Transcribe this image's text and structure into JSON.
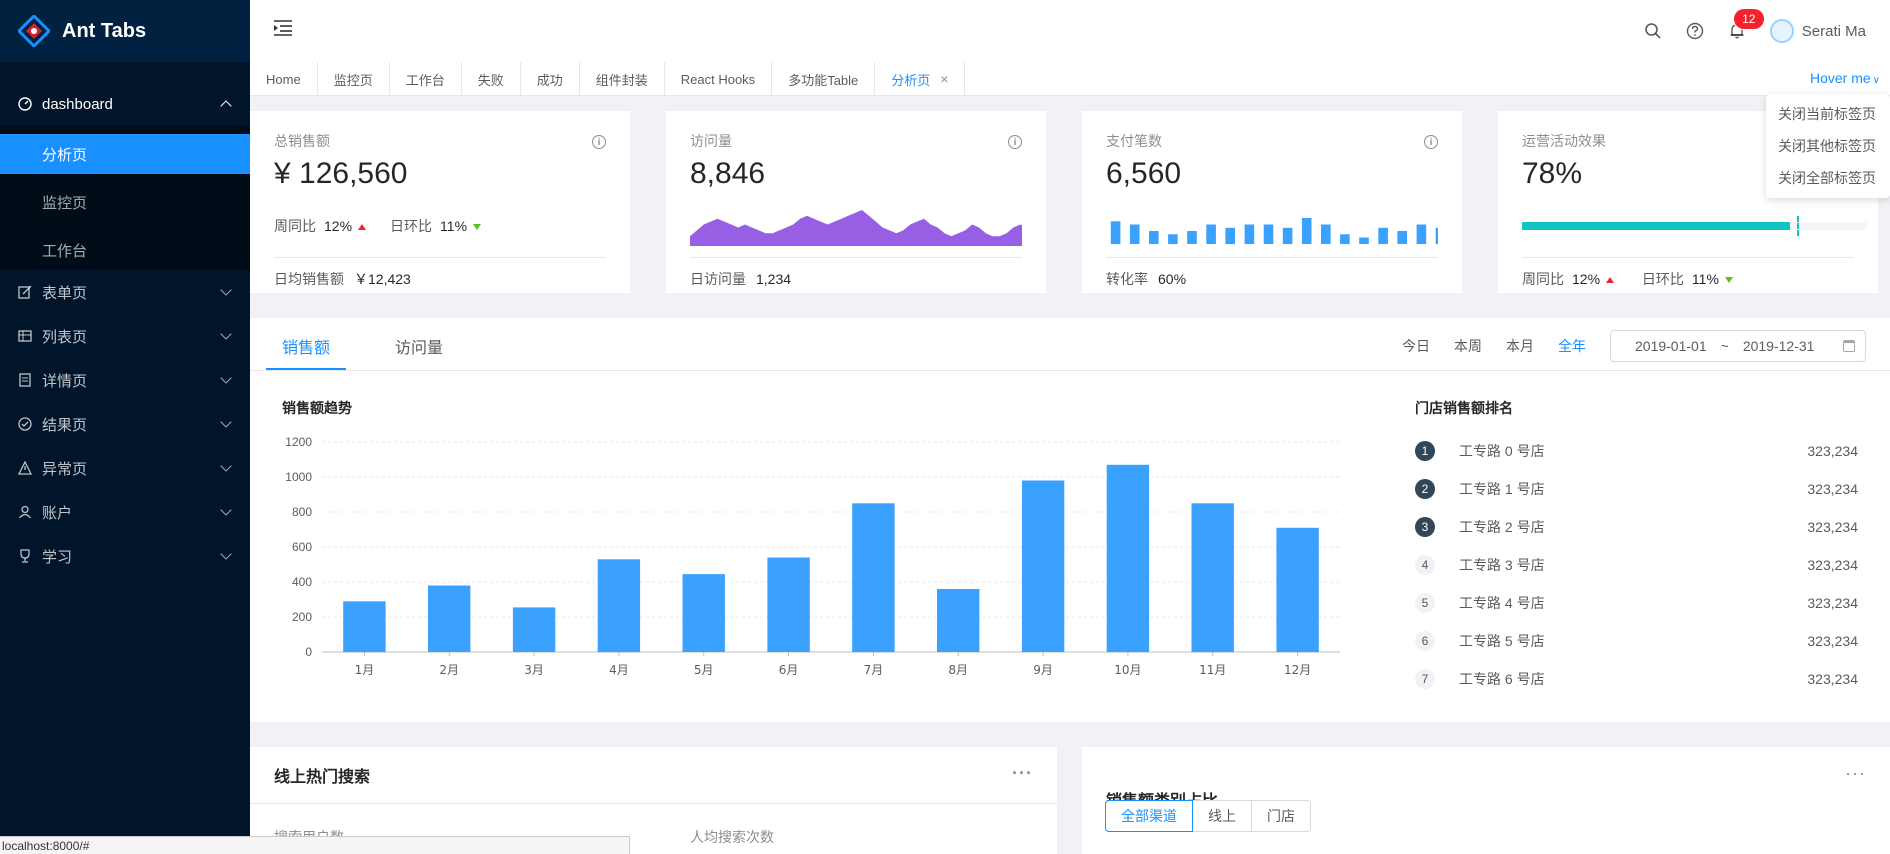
{
  "app": {
    "title": "Ant Tabs"
  },
  "sidebar": {
    "dashboard": {
      "label": "dashboard",
      "children": [
        "分析页",
        "监控页",
        "工作台"
      ]
    },
    "items": [
      "表单页",
      "列表页",
      "详情页",
      "结果页",
      "异常页",
      "账户",
      "学习"
    ]
  },
  "header": {
    "notification_count": "12",
    "user_name": "Serati Ma"
  },
  "tabs": [
    "Home",
    "监控页",
    "工作台",
    "失败",
    "成功",
    "组件封装",
    "React Hooks",
    "多功能Table",
    "分析页"
  ],
  "tabs_close": "×",
  "hover_menu": {
    "trigger": "Hover me",
    "items": [
      "关闭当前标签页",
      "关闭其他标签页",
      "关闭全部标签页"
    ]
  },
  "cards": {
    "total_sales": {
      "title": "总销售额",
      "value": "¥ 126,560",
      "wow_label": "周同比",
      "wow": "12%",
      "dod_label": "日环比",
      "dod": "11%",
      "foot_label": "日均销售额",
      "foot_value": "￥12,423"
    },
    "visits": {
      "title": "访问量",
      "value": "8,846",
      "foot_label": "日访问量",
      "foot_value": "1,234",
      "area_values": [
        2,
        4,
        6,
        7,
        8,
        7,
        6,
        5,
        6,
        5,
        4,
        3,
        3,
        4,
        5,
        6,
        8,
        9,
        8,
        7,
        6,
        7,
        8,
        9,
        10,
        11,
        9,
        7,
        5,
        4,
        3,
        4,
        6,
        7,
        8,
        6,
        5,
        3,
        2,
        3,
        4,
        6,
        5,
        3,
        2,
        2,
        3,
        5,
        6,
        5,
        4
      ]
    },
    "payments": {
      "title": "支付笔数",
      "value": "6,560",
      "foot_label": "转化率",
      "foot_value": "60%",
      "bar_values": [
        7,
        6,
        4,
        3,
        4,
        6,
        5,
        6,
        6,
        5,
        8,
        6,
        3,
        2,
        5,
        4,
        6,
        5
      ]
    },
    "campaign": {
      "title": "运营活动效果",
      "value": "78%",
      "progress": 78,
      "target": 80,
      "wow_label": "周同比",
      "wow": "12%",
      "dod_label": "日环比",
      "dod": "11%"
    }
  },
  "sales": {
    "tabs": [
      "销售额",
      "访问量"
    ],
    "ranges": [
      "今日",
      "本周",
      "本月",
      "全年"
    ],
    "date_start": "2019-01-01",
    "date_sep": "~",
    "date_end": "2019-12-31",
    "chart_title": "销售额趋势",
    "rank_title": "门店销售额排名",
    "rank": [
      {
        "no": "1",
        "name": "工专路 0 号店",
        "value": "323,234"
      },
      {
        "no": "2",
        "name": "工专路 1 号店",
        "value": "323,234"
      },
      {
        "no": "3",
        "name": "工专路 2 号店",
        "value": "323,234"
      },
      {
        "no": "4",
        "name": "工专路 3 号店",
        "value": "323,234"
      },
      {
        "no": "5",
        "name": "工专路 4 号店",
        "value": "323,234"
      },
      {
        "no": "6",
        "name": "工专路 5 号店",
        "value": "323,234"
      },
      {
        "no": "7",
        "name": "工专路 6 号店",
        "value": "323,234"
      }
    ]
  },
  "chart_data": {
    "type": "bar",
    "title": "销售额趋势",
    "categories": [
      "1月",
      "2月",
      "3月",
      "4月",
      "5月",
      "6月",
      "7月",
      "8月",
      "9月",
      "10月",
      "11月",
      "12月"
    ],
    "values": [
      290,
      380,
      255,
      530,
      445,
      540,
      850,
      360,
      980,
      1070,
      850,
      710
    ],
    "yticks": [
      0,
      200,
      400,
      600,
      800,
      1000,
      1200
    ],
    "ylim": [
      0,
      1200
    ],
    "color": "#3ba1ff"
  },
  "bottom": {
    "left_title": "线上热门搜索",
    "left_sub1": "搜索用户数",
    "left_sub2": "人均搜索次数",
    "right_title": "销售额类别占比",
    "segments": [
      "全部渠道",
      "线上",
      "门店"
    ],
    "more": "···"
  },
  "statusbar": "localhost:8000/#",
  "colors": {
    "primary": "#1890ff",
    "sider": "#001529",
    "visits_area": "#975fe4",
    "payments_bar": "#3ba1ff",
    "progress": "#13c2c2",
    "up": "#f5222d",
    "down": "#52c41a"
  }
}
